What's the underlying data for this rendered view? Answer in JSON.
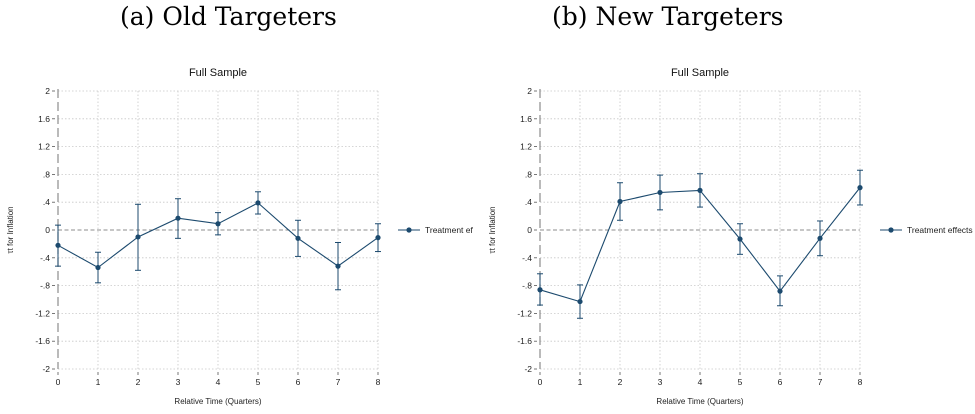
{
  "panels": [
    {
      "caption": "(a) Old Targeters",
      "chart_data": {
        "type": "line",
        "title": "Full Sample",
        "xlabel": "Relative Time (Quarters)",
        "ylabel": "τt for Inflation",
        "x": [
          0,
          1,
          2,
          3,
          4,
          5,
          6,
          7,
          8
        ],
        "xticks": [
          "0",
          "1",
          "2",
          "3",
          "4",
          "5",
          "6",
          "7",
          "8"
        ],
        "ylim": [
          -2,
          2
        ],
        "yticks": [
          "-2",
          "-1.6",
          "-1.2",
          "-.8",
          "-.4",
          "0",
          ".4",
          ".8",
          "1.2",
          "1.6",
          "2"
        ],
        "grid": true,
        "legend_position": "right",
        "series": [
          {
            "name": "Treatment ef",
            "values": [
              -0.22,
              -0.54,
              -0.1,
              0.17,
              0.09,
              0.39,
              -0.12,
              -0.52,
              -0.11
            ],
            "ci_low": [
              -0.52,
              -0.76,
              -0.58,
              -0.12,
              -0.07,
              0.23,
              -0.38,
              -0.86,
              -0.31
            ],
            "ci_high": [
              0.07,
              -0.32,
              0.37,
              0.45,
              0.25,
              0.55,
              0.14,
              -0.18,
              0.09
            ]
          }
        ],
        "reference_lines": {
          "y": 0,
          "x": 0
        }
      }
    },
    {
      "caption": "(b) New Targeters",
      "chart_data": {
        "type": "line",
        "title": "Full Sample",
        "xlabel": "Relative Time (Quarters)",
        "ylabel": "τt for Inflation",
        "x": [
          0,
          1,
          2,
          3,
          4,
          5,
          6,
          7,
          8
        ],
        "xticks": [
          "0",
          "1",
          "2",
          "3",
          "4",
          "5",
          "6",
          "7",
          "8"
        ],
        "ylim": [
          -2,
          2
        ],
        "yticks": [
          "-2",
          "-1.6",
          "-1.2",
          "-.8",
          "-.4",
          "0",
          ".4",
          ".8",
          "1.2",
          "1.6",
          "2"
        ],
        "grid": true,
        "legend_position": "right",
        "series": [
          {
            "name": "Treatment effects",
            "values": [
              -0.86,
              -1.03,
              0.41,
              0.54,
              0.57,
              -0.13,
              -0.88,
              -0.12,
              0.61
            ],
            "ci_low": [
              -1.08,
              -1.27,
              0.14,
              0.29,
              0.33,
              -0.35,
              -1.09,
              -0.37,
              0.36
            ],
            "ci_high": [
              -0.63,
              -0.79,
              0.68,
              0.79,
              0.81,
              0.09,
              -0.66,
              0.13,
              0.86
            ]
          }
        ],
        "reference_lines": {
          "y": 0,
          "x": 0
        }
      }
    }
  ],
  "colors": {
    "series": "#1c4a6e",
    "grid": "#c8c8c8",
    "reference": "#8c8c8c",
    "text": "#222222"
  }
}
